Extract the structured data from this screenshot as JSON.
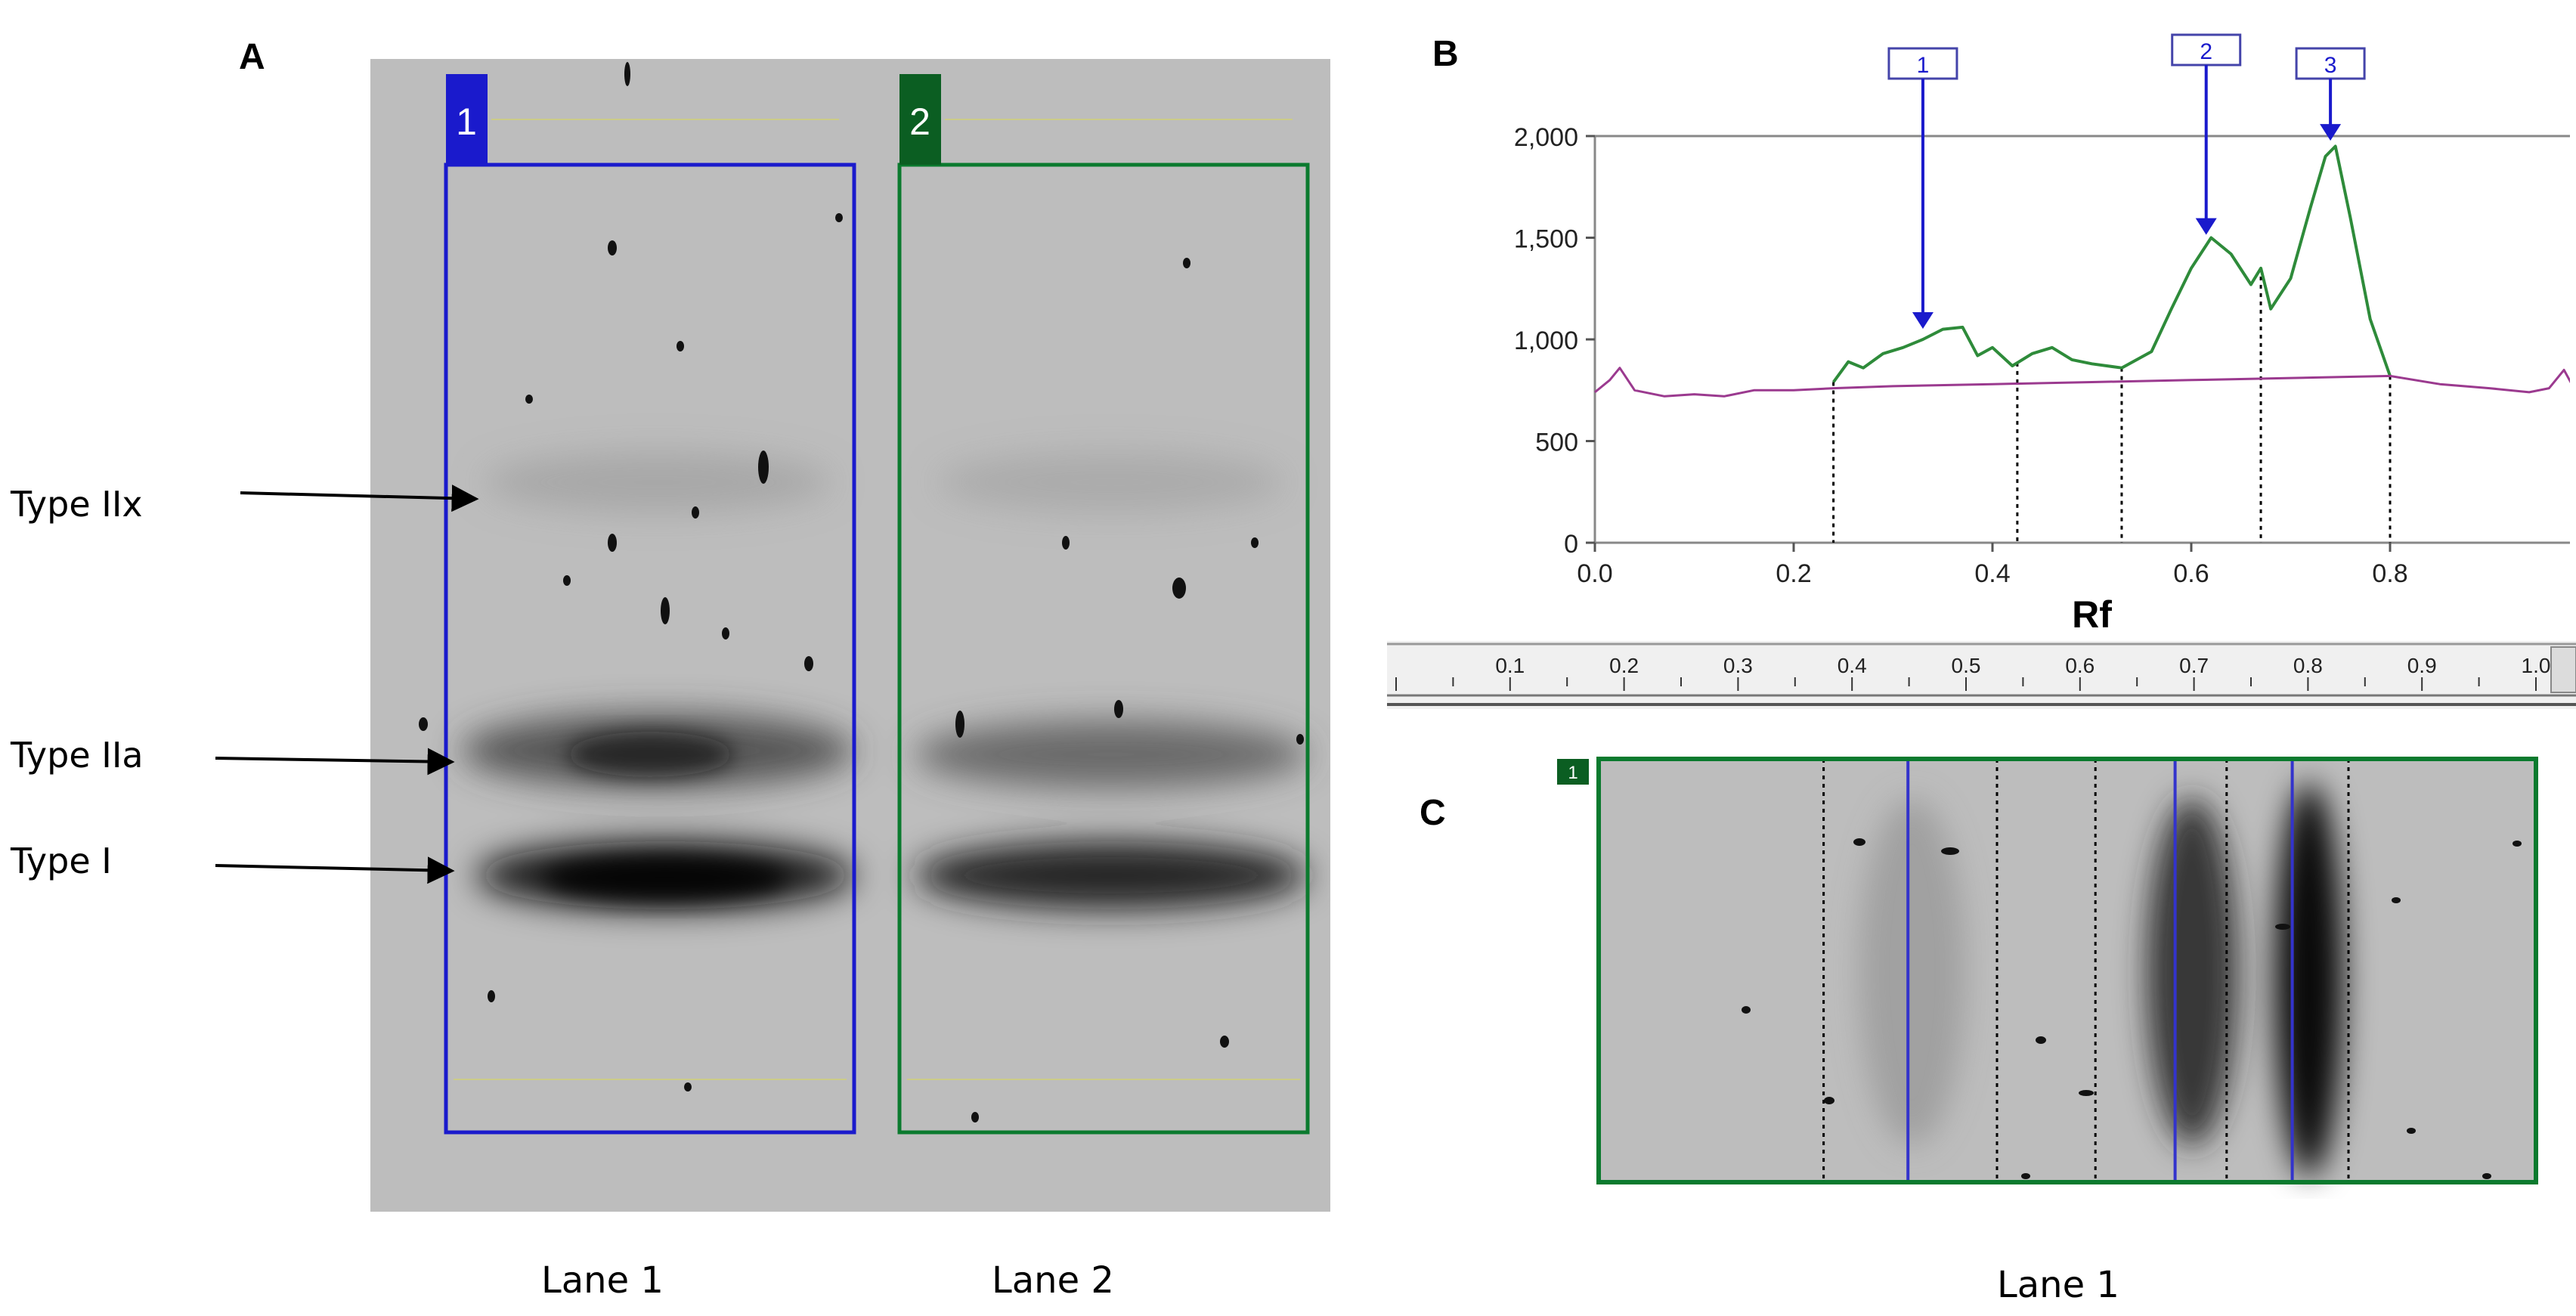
{
  "panels": {
    "a": {
      "letter": "A",
      "lane_boxes": [
        {
          "number": "1",
          "color": "#1a1acc"
        },
        {
          "number": "2",
          "color": "#0b7a2e"
        }
      ],
      "band_labels": [
        "Type IIx",
        "Type IIa",
        "Type I"
      ],
      "captions": [
        "Lane 1",
        "Lane 2"
      ]
    },
    "b": {
      "letter": "B"
    },
    "c": {
      "letter": "C",
      "lane_number": "1",
      "caption": "Lane 1"
    }
  },
  "chart_data": {
    "type": "line",
    "xlabel": "Rf",
    "ylabel": "",
    "xlim": [
      0.0,
      1.0
    ],
    "ylim": [
      0,
      2000
    ],
    "x_ticks": [
      "0.0",
      "0.2",
      "0.4",
      "0.6",
      "0.8",
      "1.0"
    ],
    "y_ticks": [
      "0",
      "500",
      "1,000",
      "1,500",
      "2,000"
    ],
    "series": [
      {
        "color": "#2e8b3a",
        "x": [
          0.24,
          0.255,
          0.27,
          0.29,
          0.31,
          0.33,
          0.35,
          0.37,
          0.385,
          0.4,
          0.42,
          0.44,
          0.46,
          0.48,
          0.5,
          0.53,
          0.56,
          0.58,
          0.6,
          0.62,
          0.64,
          0.66,
          0.67,
          0.68,
          0.7,
          0.72,
          0.735,
          0.745,
          0.76,
          0.78,
          0.8
        ],
        "y": [
          790,
          890,
          860,
          930,
          960,
          1000,
          1050,
          1060,
          920,
          960,
          870,
          930,
          960,
          900,
          880,
          860,
          940,
          1150,
          1350,
          1500,
          1420,
          1270,
          1350,
          1150,
          1300,
          1650,
          1900,
          1950,
          1600,
          1100,
          820
        ]
      },
      {
        "color": "#9b3a8f",
        "x": [
          0.0,
          0.015,
          0.025,
          0.04,
          0.07,
          0.1,
          0.13,
          0.16,
          0.2,
          0.24,
          0.3,
          0.4,
          0.5,
          0.6,
          0.7,
          0.8,
          0.85,
          0.9,
          0.94,
          0.96,
          0.975,
          0.985,
          1.0
        ],
        "y": [
          740,
          800,
          860,
          750,
          720,
          730,
          720,
          750,
          750,
          760,
          770,
          780,
          790,
          800,
          810,
          820,
          780,
          760,
          740,
          760,
          850,
          760,
          740
        ]
      }
    ],
    "peaks": [
      {
        "label": "1",
        "x": 0.33
      },
      {
        "label": "2",
        "x": 0.615
      },
      {
        "label": "3",
        "x": 0.74
      }
    ],
    "band_boundaries_rf": [
      0.24,
      0.425,
      0.53,
      0.67,
      0.8
    ]
  },
  "rf_ruler": {
    "ticks": [
      "0.1",
      "0.2",
      "0.3",
      "0.4",
      "0.5",
      "0.6",
      "0.7",
      "0.8",
      "0.9",
      "1.0"
    ]
  }
}
